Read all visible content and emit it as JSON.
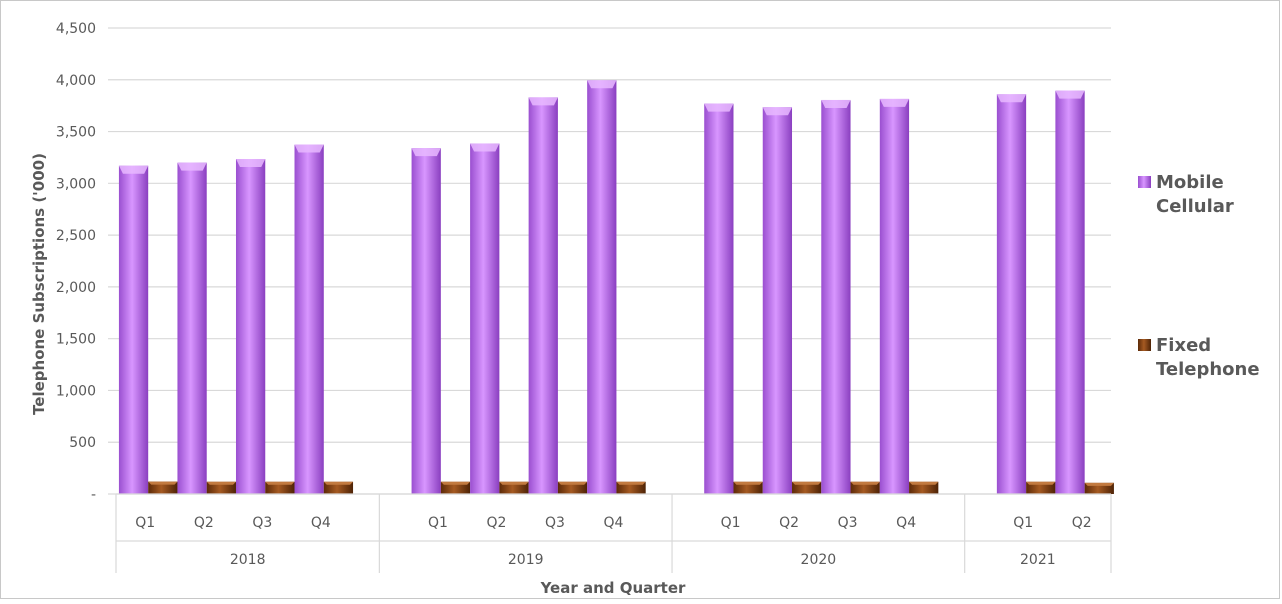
{
  "chart_data": {
    "type": "bar",
    "title": "",
    "xlabel": "Year and Quarter",
    "ylabel": "Telephone Subscriptions ('000)",
    "ylim": [
      0,
      4500
    ],
    "yticks": [
      0,
      500,
      1000,
      1500,
      2000,
      2500,
      3000,
      3500,
      4000,
      4500
    ],
    "ytick_labels": [
      "-",
      "500",
      "1,000",
      "1,500",
      "2,000",
      "2,500",
      "3,000",
      "3,500",
      "4,000",
      "4,500"
    ],
    "grid": true,
    "legend_position": "right",
    "groups": [
      {
        "label": "2018",
        "categories": [
          "Q1",
          "Q2",
          "Q3",
          "Q4"
        ]
      },
      {
        "label": "2019",
        "categories": [
          "Q1",
          "Q2",
          "Q3",
          "Q4"
        ]
      },
      {
        "label": "2020",
        "categories": [
          "Q1",
          "Q2",
          "Q3",
          "Q4"
        ]
      },
      {
        "label": "2021",
        "categories": [
          "Q1",
          "Q2"
        ]
      }
    ],
    "series": [
      {
        "name": "Mobile Cellular",
        "color": "#b565e6",
        "values": [
          3170,
          3200,
          3235,
          3375,
          3340,
          3385,
          3830,
          3995,
          3770,
          3735,
          3805,
          3815,
          3860,
          3895
        ]
      },
      {
        "name": "Fixed Telephone",
        "color": "#7a3d12",
        "values": [
          120,
          118,
          118,
          118,
          118,
          118,
          118,
          118,
          118,
          118,
          118,
          118,
          118,
          108
        ]
      }
    ]
  }
}
